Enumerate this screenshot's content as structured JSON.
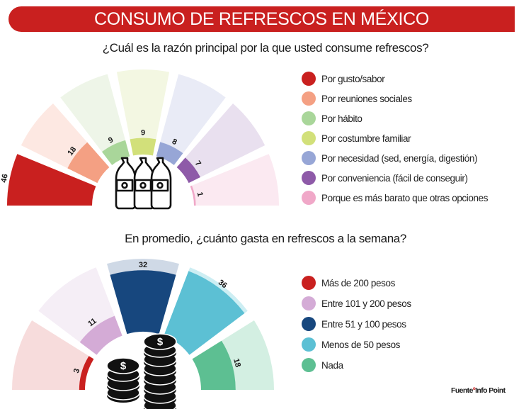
{
  "header": {
    "title": "CONSUMO DE REFRESCOS EN MÉXICO",
    "banner_color": "#c9201f"
  },
  "chart_data": [
    {
      "type": "radial-bar",
      "title": "¿Cuál es la razón principal por la que usted consume refrescos?",
      "categories": [
        "Por gusto/sabor",
        "Por reuniones sociales",
        "Por hábito",
        "Por costumbre familiar",
        "Por necesidad (sed, energía, digestión)",
        "Por conveniencia (fácil de conseguir)",
        "Porque es más barato que otras opciones"
      ],
      "values": [
        46,
        18,
        9,
        9,
        8,
        7,
        1
      ],
      "unit": "%",
      "colors": [
        "#c9201f",
        "#f4a083",
        "#a9d69a",
        "#d2e07a",
        "#97a6d6",
        "#8e5aa8",
        "#f0a8c8"
      ],
      "bg_colors": [
        "#fbe2dc",
        "#fde8e2",
        "#eef5e8",
        "#f3f7e2",
        "#e9ebf6",
        "#e9e0ef",
        "#fbe9f1"
      ],
      "legend_position": "right",
      "center_icon": "soda-bottles-icon"
    },
    {
      "type": "radial-bar",
      "title": "En promedio, ¿cuánto gasta en refrescos a la semana?",
      "categories": [
        "Más de 200 pesos",
        "Entre 101 y 200 pesos",
        "Entre 51 y 100 pesos",
        "Menos de 50 pesos",
        "Nada"
      ],
      "values": [
        3,
        11,
        32,
        36,
        18
      ],
      "unit": "%",
      "colors": [
        "#c9201f",
        "#d4abd6",
        "#17477e",
        "#5cc0d4",
        "#5dbf92"
      ],
      "bg_colors": [
        "#f7dcdc",
        "#f5eef6",
        "#cfd9e6",
        "#cdeef3",
        "#d3efe2"
      ],
      "legend_position": "right",
      "center_icon": "coin-stacks-icon"
    }
  ],
  "legend1": [
    {
      "label": "Por gusto/sabor",
      "color": "#c9201f"
    },
    {
      "label": "Por reuniones sociales",
      "color": "#f4a083"
    },
    {
      "label": "Por hábito",
      "color": "#a9d69a"
    },
    {
      "label": "Por costumbre familiar",
      "color": "#d2e07a"
    },
    {
      "label": "Por necesidad (sed, energía, digestión)",
      "color": "#97a6d6"
    },
    {
      "label": "Por conveniencia (fácil de conseguir)",
      "color": "#8e5aa8"
    },
    {
      "label": "Porque es más barato que otras opciones",
      "color": "#f0a8c8"
    }
  ],
  "legend2": [
    {
      "label": "Más de 200 pesos",
      "color": "#c9201f"
    },
    {
      "label": "Entre 101 y 200 pesos",
      "color": "#d4abd6"
    },
    {
      "label": "Entre 51 y 100 pesos",
      "color": "#17477e"
    },
    {
      "label": "Menos de 50 pesos",
      "color": "#5cc0d4"
    },
    {
      "label": "Nada",
      "color": "#5dbf92"
    }
  ],
  "footer": {
    "source_prefix": "Fuente",
    "source_mark": "º",
    "source_name": "Info Point"
  }
}
